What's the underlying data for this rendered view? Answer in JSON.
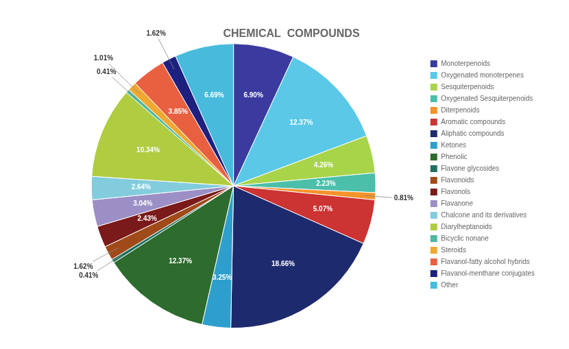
{
  "chart_data": {
    "type": "pie",
    "title": "CHEMICAL  COMPOUNDS",
    "categories": [
      "Monoterpenoids",
      "Oxygenated monoterpenes",
      "Sesquiterpenoids",
      "Oxygenated Sesquiterpenoids",
      "Diterpenoids",
      "Aromatic compounds",
      "Aliphatic compounds",
      "Ketones",
      "Phenolic",
      "Flavone glycosides",
      "Flavonoids",
      "Flavonols",
      "Flavanone",
      "Chalcone and its derivatives",
      "Diarylheptanoids",
      "Bicyclic nonane",
      "Steroids",
      "Flavanol-fatty alcohol hybrids",
      "Flavanol-menthane conjugates",
      "Other"
    ],
    "values": [
      6.9,
      12.37,
      4.26,
      2.23,
      0.81,
      5.07,
      18.66,
      3.25,
      12.37,
      0.41,
      1.62,
      2.43,
      3.04,
      2.64,
      10.34,
      0.41,
      1.01,
      3.85,
      1.62,
      6.69
    ],
    "value_labels": [
      "6.90%",
      "12.37%",
      "4.26%",
      "2.23%",
      "0.81%",
      "5.07%",
      "18.66%",
      "3.25%",
      "12.37%",
      "0.41%",
      "1.62%",
      "2.43%",
      "3.04%",
      "2.64%",
      "10.34%",
      "0.41%",
      "1.01%",
      "3.85%",
      "1.62%",
      "6.69%"
    ],
    "colors": [
      "#3A3A9F",
      "#5BC8E8",
      "#A8D44A",
      "#4BBFAA",
      "#F5922A",
      "#CC3333",
      "#1E2A6E",
      "#2E9FCC",
      "#2E6B2E",
      "#1F7060",
      "#A04A1A",
      "#7A1A1A",
      "#9B8FC5",
      "#82CCDD",
      "#B0CC40",
      "#50B8A0",
      "#F0A830",
      "#E86040",
      "#1E2080",
      "#48BBDD"
    ],
    "data_labels": true,
    "legend": "right"
  }
}
